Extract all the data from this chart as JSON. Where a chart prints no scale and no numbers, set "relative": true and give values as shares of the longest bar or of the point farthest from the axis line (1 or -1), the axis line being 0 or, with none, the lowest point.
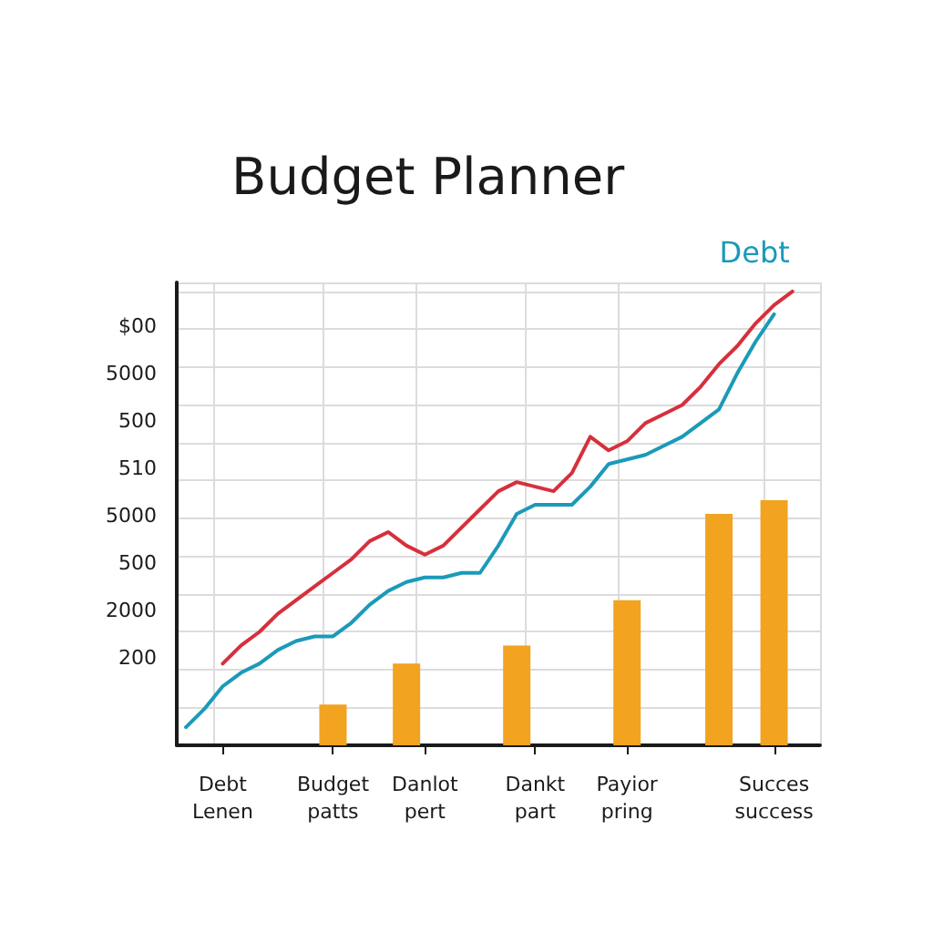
{
  "chart_data": {
    "type": "bar",
    "title": "Budget Planner",
    "relative": true,
    "categories": [
      null,
      null,
      "Debt Lenen",
      null,
      null,
      null,
      null,
      null,
      "Budget patts",
      null,
      null,
      null,
      null,
      "Danlot pert",
      null,
      null,
      null,
      null,
      null,
      "Dankt part",
      null,
      null,
      null,
      null,
      "Payior pring",
      null,
      null,
      null,
      null,
      null,
      null,
      null,
      "Succes success",
      null,
      null
    ],
    "series": [
      {
        "color": "#f2a31f",
        "values": [
          null,
          null,
          null,
          null,
          null,
          null,
          null,
          null,
          0.09,
          null,
          null,
          null,
          0.18,
          null,
          null,
          null,
          null,
          null,
          0.22,
          null,
          null,
          null,
          null,
          null,
          0.32,
          null,
          null,
          null,
          null,
          0.51,
          null,
          null,
          0.54,
          null,
          null
        ]
      },
      {
        "type": "line",
        "color": "#d6303c",
        "values": [
          null,
          null,
          0.18,
          0.22,
          0.25,
          0.29,
          0.32,
          0.35,
          0.38,
          0.41,
          0.45,
          0.47,
          0.44,
          0.42,
          0.44,
          0.48,
          0.52,
          0.56,
          0.58,
          0.57,
          0.56,
          0.6,
          0.68,
          0.65,
          0.67,
          0.71,
          0.73,
          0.75,
          0.79,
          0.84,
          0.88,
          0.93,
          0.97,
          1.0,
          null
        ]
      },
      {
        "type": "line",
        "name": "Debt",
        "color": "#1b9ab8",
        "values": [
          0.04,
          0.08,
          0.13,
          0.16,
          0.18,
          0.21,
          0.23,
          0.24,
          0.24,
          0.27,
          0.31,
          0.34,
          0.36,
          0.37,
          0.37,
          0.38,
          0.38,
          0.44,
          0.51,
          0.53,
          0.53,
          0.53,
          0.57,
          0.62,
          0.63,
          0.64,
          0.66,
          0.68,
          0.71,
          0.74,
          0.82,
          0.89,
          0.95,
          null,
          null
        ]
      }
    ],
    "annotations": [
      "$00",
      "5000",
      "500",
      "510",
      "5000",
      "500",
      "2000",
      "200"
    ],
    "grid": true,
    "legend": false,
    "marker": "none",
    "line_style": "solid"
  }
}
